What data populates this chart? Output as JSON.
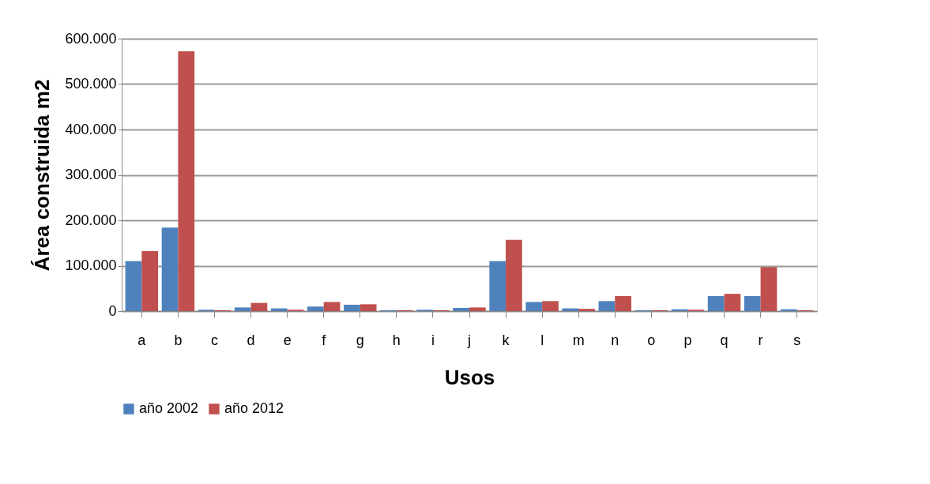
{
  "chart_data": {
    "type": "bar",
    "xlabel": "Usos",
    "ylabel": "Área construida m2",
    "categories": [
      "a",
      "b",
      "c",
      "d",
      "e",
      "f",
      "g",
      "h",
      "i",
      "j",
      "k",
      "l",
      "m",
      "n",
      "o",
      "p",
      "q",
      "r",
      "s"
    ],
    "series": [
      {
        "name": "año 2002",
        "color": "#4f81bd",
        "values": [
          110000,
          184000,
          3000,
          8000,
          6000,
          10000,
          14000,
          2000,
          3000,
          7000,
          110000,
          20000,
          6000,
          22000,
          2000,
          4000,
          33000,
          33000,
          4000
        ]
      },
      {
        "name": "año 2012",
        "color": "#c0504d",
        "values": [
          132000,
          572000,
          2000,
          18000,
          3000,
          20000,
          15000,
          2000,
          2000,
          8000,
          157000,
          22000,
          5000,
          33000,
          2000,
          3000,
          38000,
          97000,
          2000
        ]
      }
    ],
    "ylim": [
      0,
      600000
    ],
    "yticks": [
      {
        "value": 0,
        "label": "0"
      },
      {
        "value": 100000,
        "label": "100.000"
      },
      {
        "value": 200000,
        "label": "200.000"
      },
      {
        "value": 300000,
        "label": "300.000"
      },
      {
        "value": 400000,
        "label": "400.000"
      },
      {
        "value": 500000,
        "label": "500.000"
      },
      {
        "value": 600000,
        "label": "600.000"
      }
    ],
    "grid": "y",
    "legend": "bottom"
  }
}
